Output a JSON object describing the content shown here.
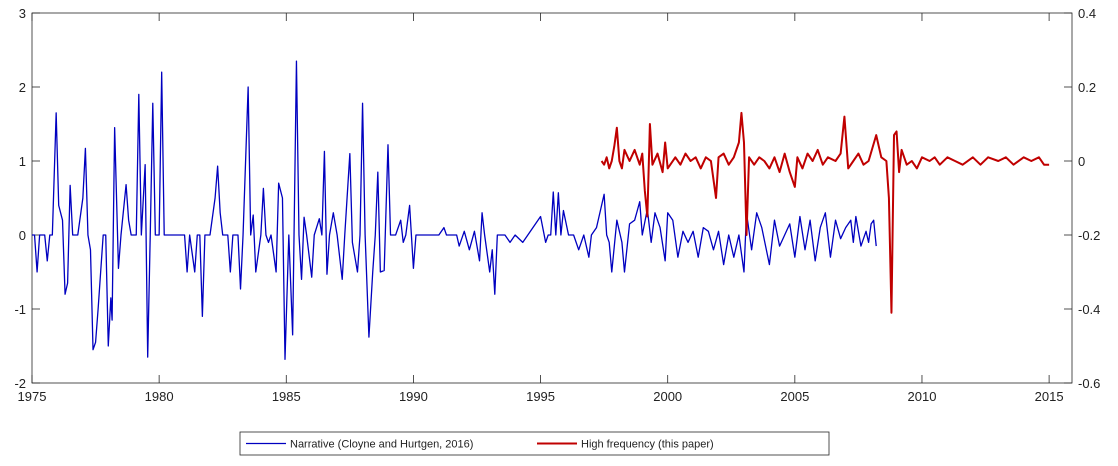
{
  "chart_data": {
    "type": "line",
    "xlim": [
      1975,
      2015.9
    ],
    "xticks": [
      1975,
      1980,
      1985,
      1990,
      1995,
      2000,
      2005,
      2010,
      2015
    ],
    "ylim": [
      -2,
      3
    ],
    "yticks": [
      -2,
      -1,
      0,
      1,
      2,
      3
    ],
    "y2lim": [
      -0.6,
      0.4
    ],
    "y2ticks": [
      -0.6,
      -0.4,
      -0.2,
      0,
      0.2,
      0.4
    ],
    "series": [
      {
        "name": "Narrative (Cloyne and Hurtgen, 2016)",
        "color": "#0000c0",
        "axis": "y",
        "x": [
          1975.0,
          1975.1,
          1975.2,
          1975.3,
          1975.5,
          1975.6,
          1975.7,
          1975.8,
          1975.95,
          1976.05,
          1976.2,
          1976.3,
          1976.4,
          1976.5,
          1976.6,
          1976.8,
          1977.0,
          1977.1,
          1977.2,
          1977.3,
          1977.4,
          1977.5,
          1977.6,
          1977.8,
          1977.9,
          1978.0,
          1978.1,
          1978.15,
          1978.25,
          1978.4,
          1978.5,
          1978.7,
          1978.8,
          1978.9,
          1979.1,
          1979.2,
          1979.3,
          1979.45,
          1979.55,
          1979.65,
          1979.75,
          1979.85,
          1980.0,
          1980.1,
          1980.2,
          1980.5,
          1981.0,
          1981.1,
          1981.2,
          1981.4,
          1981.5,
          1981.6,
          1981.7,
          1981.8,
          1982.0,
          1982.2,
          1982.3,
          1982.4,
          1982.5,
          1982.7,
          1982.8,
          1982.9,
          1983.1,
          1983.2,
          1983.3,
          1983.5,
          1983.6,
          1983.7,
          1983.8,
          1984.0,
          1984.1,
          1984.2,
          1984.3,
          1984.4,
          1984.6,
          1984.7,
          1984.85,
          1984.95,
          1985.1,
          1985.25,
          1985.4,
          1985.5,
          1985.6,
          1985.7,
          1985.8,
          1986.0,
          1986.1,
          1986.3,
          1986.4,
          1986.5,
          1986.6,
          1986.7,
          1986.85,
          1987.0,
          1987.2,
          1987.3,
          1987.5,
          1987.6,
          1987.8,
          1987.9,
          1988.0,
          1988.1,
          1988.25,
          1988.4,
          1988.5,
          1988.6,
          1988.7,
          1988.85,
          1989.0,
          1989.1,
          1989.3,
          1989.5,
          1989.6,
          1989.7,
          1989.85,
          1990.0,
          1990.1,
          1991.0,
          1991.2,
          1991.3,
          1991.7,
          1991.8,
          1992.0,
          1992.2,
          1992.4,
          1992.6,
          1992.7,
          1992.8,
          1993.0,
          1993.1,
          1993.2,
          1993.3,
          1993.6,
          1993.8,
          1994.0,
          1994.3,
          1994.5,
          1995.0,
          1995.2,
          1995.3,
          1995.4,
          1995.5,
          1995.6,
          1995.7,
          1995.8,
          1995.9,
          1996.1,
          1996.3,
          1996.5,
          1996.7,
          1996.9,
          1997.0,
          1997.2,
          1997.4,
          1997.5,
          1997.6,
          1997.7,
          1997.8,
          1998.0,
          1998.2,
          1998.3,
          1998.5,
          1998.7,
          1998.9,
          1999.0,
          1999.2,
          1999.35,
          1999.5,
          1999.7,
          1999.9,
          2000.0,
          2000.2,
          2000.4,
          2000.6,
          2000.8,
          2001.0,
          2001.2,
          2001.4,
          2001.6,
          2001.8,
          2002.0,
          2002.2,
          2002.4,
          2002.6,
          2002.8,
          2003.0,
          2003.1,
          2003.3,
          2003.5,
          2003.7,
          2004.0,
          2004.2,
          2004.4,
          2004.6,
          2004.8,
          2005.0,
          2005.2,
          2005.4,
          2005.6,
          2005.8,
          2006.0,
          2006.2,
          2006.4,
          2006.6,
          2006.8,
          2007.0,
          2007.2,
          2007.3,
          2007.4,
          2007.6,
          2007.8,
          2007.9,
          2008.0,
          2008.1,
          2008.2
        ],
        "values": [
          0,
          0,
          -0.5,
          0,
          0,
          -0.35,
          0,
          0,
          1.65,
          0.4,
          0.2,
          -0.8,
          -0.65,
          0.67,
          0,
          0,
          0.5,
          1.17,
          0,
          -0.2,
          -1.55,
          -1.45,
          -1.0,
          0,
          0,
          -1.5,
          -0.85,
          -1.15,
          1.45,
          -0.45,
          0,
          0.68,
          0.2,
          0,
          0,
          1.9,
          0,
          0.95,
          -1.65,
          0,
          1.78,
          0,
          0,
          2.2,
          0,
          0,
          0,
          -0.5,
          0,
          -0.5,
          0,
          0,
          -1.1,
          0,
          0,
          0.5,
          0.93,
          0.3,
          0,
          0,
          -0.5,
          0,
          0,
          -0.73,
          0,
          2.0,
          0,
          0.27,
          -0.5,
          0,
          0.63,
          0,
          -0.1,
          0,
          -0.5,
          0.7,
          0.5,
          -1.68,
          0,
          -1.35,
          2.35,
          0,
          -0.6,
          0.24,
          0,
          -0.57,
          0,
          0.22,
          0,
          1.13,
          -0.53,
          0,
          0.3,
          0,
          -0.6,
          0,
          1.1,
          -0.1,
          -0.5,
          0,
          1.78,
          0,
          -1.38,
          -0.5,
          0,
          0.85,
          -0.5,
          -0.48,
          1.22,
          0,
          0,
          0.2,
          -0.1,
          0,
          0.4,
          -0.45,
          0,
          0,
          0.1,
          0,
          0,
          -0.15,
          0.05,
          -0.2,
          0.05,
          -0.35,
          0.3,
          0,
          -0.5,
          -0.2,
          -0.8,
          0,
          0,
          -0.1,
          0,
          -0.1,
          0,
          0.25,
          -0.1,
          0,
          0,
          0.58,
          0,
          0.57,
          0,
          0.33,
          0,
          0,
          -0.2,
          0,
          -0.3,
          0,
          0.1,
          0.4,
          0.55,
          0,
          -0.1,
          -0.5,
          0.2,
          -0.1,
          -0.5,
          0.15,
          0.2,
          0.45,
          0,
          0.35,
          -0.1,
          0.3,
          0.1,
          -0.35,
          0.3,
          0.2,
          -0.3,
          0.05,
          -0.1,
          0.05,
          -0.3,
          0.1,
          0.05,
          -0.2,
          0.05,
          -0.4,
          0,
          -0.3,
          0,
          -0.5,
          0.3,
          -0.2,
          0.3,
          0.1,
          -0.4,
          0.2,
          -0.15,
          0,
          0.15,
          -0.3,
          0.25,
          -0.2,
          0.2,
          -0.35,
          0.1,
          0.3,
          -0.3,
          0.2,
          -0.05,
          0.1,
          0.2,
          -0.1,
          0.25,
          -0.15,
          0.05,
          -0.1,
          0.15,
          0.2,
          -0.15
        ]
      },
      {
        "name": "High frequency (this paper)",
        "color": "#c00000",
        "axis": "y2",
        "x": [
          1997.4,
          1997.5,
          1997.6,
          1997.7,
          1997.8,
          1997.9,
          1998.0,
          1998.1,
          1998.2,
          1998.3,
          1998.5,
          1998.7,
          1998.9,
          1999.0,
          1999.1,
          1999.2,
          1999.3,
          1999.4,
          1999.6,
          1999.8,
          1999.9,
          2000.0,
          2000.3,
          2000.5,
          2000.7,
          2000.9,
          2001.1,
          2001.3,
          2001.5,
          2001.7,
          2001.8,
          2001.9,
          2002.0,
          2002.2,
          2002.4,
          2002.6,
          2002.8,
          2002.9,
          2003.0,
          2003.1,
          2003.2,
          2003.4,
          2003.6,
          2003.8,
          2004.0,
          2004.2,
          2004.4,
          2004.6,
          2004.8,
          2005.0,
          2005.1,
          2005.3,
          2005.5,
          2005.7,
          2005.9,
          2006.1,
          2006.3,
          2006.6,
          2006.8,
          2006.95,
          2007.1,
          2007.3,
          2007.5,
          2007.7,
          2007.9,
          2008.2,
          2008.4,
          2008.6,
          2008.7,
          2008.8,
          2008.9,
          2009.0,
          2009.1,
          2009.2,
          2009.4,
          2009.6,
          2009.8,
          2010.0,
          2010.3,
          2010.5,
          2010.7,
          2011.0,
          2011.3,
          2011.6,
          2012.0,
          2012.3,
          2012.6,
          2013.0,
          2013.3,
          2013.6,
          2014.0,
          2014.3,
          2014.6,
          2014.8,
          2015.0
        ],
        "values": [
          0,
          -0.01,
          0.01,
          -0.02,
          0,
          0.04,
          0.09,
          0,
          -0.02,
          0.03,
          0,
          0.03,
          -0.01,
          0.02,
          -0.08,
          -0.15,
          0.1,
          -0.01,
          0.02,
          -0.03,
          0.05,
          -0.02,
          0.01,
          -0.01,
          0.02,
          0,
          0.01,
          -0.02,
          0.01,
          0,
          -0.05,
          -0.1,
          0.01,
          0.02,
          -0.01,
          0.01,
          0.05,
          0.13,
          0.05,
          -0.2,
          0.01,
          -0.01,
          0.01,
          0,
          -0.02,
          0.01,
          -0.03,
          0.02,
          -0.03,
          -0.07,
          0.01,
          -0.02,
          0.02,
          0,
          0.03,
          -0.01,
          0.01,
          0,
          0.02,
          0.12,
          -0.02,
          0,
          0.02,
          -0.01,
          0,
          0.07,
          0.01,
          0,
          -0.1,
          -0.41,
          0.07,
          0.08,
          -0.03,
          0.03,
          -0.01,
          0,
          -0.02,
          0.01,
          0,
          0.01,
          -0.01,
          0.01,
          0,
          -0.01,
          0.01,
          -0.01,
          0.01,
          0,
          0.01,
          -0.01,
          0.01,
          0,
          0.01,
          -0.01,
          -0.01
        ]
      }
    ]
  }
}
